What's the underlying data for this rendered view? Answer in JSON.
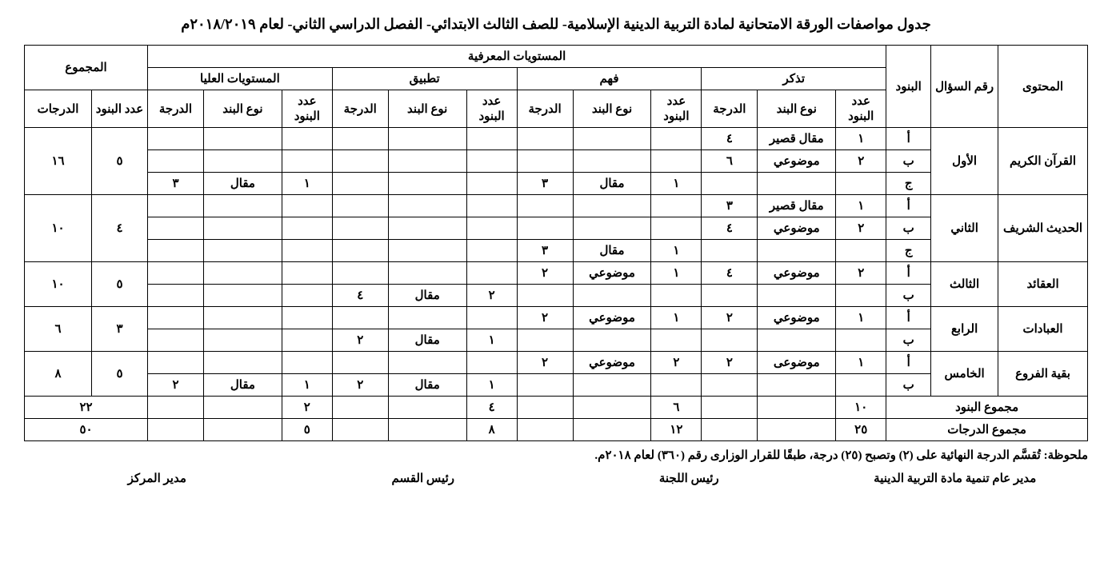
{
  "title": "جدول مواصفات الورقة الامتحانية لمادة التربية الدينية الإسلامية- للصف الثالث الابتدائي- الفصل الدراسي الثاني- لعام ٢٠١٨/٢٠١٩م",
  "headers": {
    "content": "المحتوى",
    "question_no": "رقم السؤال",
    "items": "البنود",
    "cognitive_levels": "المستويات المعرفية",
    "remember": "تذكر",
    "understand": "فهم",
    "apply": "تطبيق",
    "higher": "المستويات العليا",
    "total": "المجموع",
    "num_items": "عدد البنود",
    "item_type": "نوع البند",
    "degree": "الدرجة",
    "degrees": "الدرجات"
  },
  "rows": [
    {
      "content": "القرآن الكريم",
      "q": "الأول",
      "sub": [
        {
          "band": "أ",
          "r_n": "١",
          "r_t": "مقال قصير",
          "r_d": "٤",
          "u_n": "",
          "u_t": "",
          "u_d": "",
          "a_n": "",
          "a_t": "",
          "a_d": "",
          "h_n": "",
          "h_t": "",
          "h_d": ""
        },
        {
          "band": "ب",
          "r_n": "٢",
          "r_t": "موضوعي",
          "r_d": "٦",
          "u_n": "",
          "u_t": "",
          "u_d": "",
          "a_n": "",
          "a_t": "",
          "a_d": "",
          "h_n": "",
          "h_t": "",
          "h_d": ""
        },
        {
          "band": "ج",
          "r_n": "",
          "r_t": "",
          "r_d": "",
          "u_n": "١",
          "u_t": "مقال",
          "u_d": "٣",
          "a_n": "",
          "a_t": "",
          "a_d": "",
          "h_n": "١",
          "h_t": "مقال",
          "h_d": "٣"
        }
      ],
      "tot_n": "٥",
      "tot_d": "١٦"
    },
    {
      "content": "الحديث الشريف",
      "q": "الثاني",
      "sub": [
        {
          "band": "أ",
          "r_n": "١",
          "r_t": "مقال قصير",
          "r_d": "٣",
          "u_n": "",
          "u_t": "",
          "u_d": "",
          "a_n": "",
          "a_t": "",
          "a_d": "",
          "h_n": "",
          "h_t": "",
          "h_d": ""
        },
        {
          "band": "ب",
          "r_n": "٢",
          "r_t": "موضوعي",
          "r_d": "٤",
          "u_n": "",
          "u_t": "",
          "u_d": "",
          "a_n": "",
          "a_t": "",
          "a_d": "",
          "h_n": "",
          "h_t": "",
          "h_d": ""
        },
        {
          "band": "ج",
          "r_n": "",
          "r_t": "",
          "r_d": "",
          "u_n": "١",
          "u_t": "مقال",
          "u_d": "٣",
          "a_n": "",
          "a_t": "",
          "a_d": "",
          "h_n": "",
          "h_t": "",
          "h_d": ""
        }
      ],
      "tot_n": "٤",
      "tot_d": "١٠"
    },
    {
      "content": "العقائد",
      "q": "الثالث",
      "sub": [
        {
          "band": "أ",
          "r_n": "٢",
          "r_t": "موضوعي",
          "r_d": "٤",
          "u_n": "١",
          "u_t": "موضوعي",
          "u_d": "٢",
          "a_n": "",
          "a_t": "",
          "a_d": "",
          "h_n": "",
          "h_t": "",
          "h_d": ""
        },
        {
          "band": "ب",
          "r_n": "",
          "r_t": "",
          "r_d": "",
          "u_n": "",
          "u_t": "",
          "u_d": "",
          "a_n": "٢",
          "a_t": "مقال",
          "a_d": "٤",
          "h_n": "",
          "h_t": "",
          "h_d": ""
        }
      ],
      "tot_n": "٥",
      "tot_d": "١٠"
    },
    {
      "content": "العبادات",
      "q": "الرابع",
      "sub": [
        {
          "band": "أ",
          "r_n": "١",
          "r_t": "موضوعي",
          "r_d": "٢",
          "u_n": "١",
          "u_t": "موضوعي",
          "u_d": "٢",
          "a_n": "",
          "a_t": "",
          "a_d": "",
          "h_n": "",
          "h_t": "",
          "h_d": ""
        },
        {
          "band": "ب",
          "r_n": "",
          "r_t": "",
          "r_d": "",
          "u_n": "",
          "u_t": "",
          "u_d": "",
          "a_n": "١",
          "a_t": "مقال",
          "a_d": "٢",
          "h_n": "",
          "h_t": "",
          "h_d": ""
        }
      ],
      "tot_n": "٣",
      "tot_d": "٦"
    },
    {
      "content": "بقية الفروع",
      "q": "الخامس",
      "sub": [
        {
          "band": "أ",
          "r_n": "١",
          "r_t": "موضوعى",
          "r_d": "٢",
          "u_n": "٢",
          "u_t": "موضوعي",
          "u_d": "٢",
          "a_n": "",
          "a_t": "",
          "a_d": "",
          "h_n": "",
          "h_t": "",
          "h_d": ""
        },
        {
          "band": "ب",
          "r_n": "",
          "r_t": "",
          "r_d": "",
          "u_n": "",
          "u_t": "",
          "u_d": "",
          "a_n": "١",
          "a_t": "مقال",
          "a_d": "٢",
          "h_n": "١",
          "h_t": "مقال",
          "h_d": "٢"
        }
      ],
      "tot_n": "٥",
      "tot_d": "٨"
    }
  ],
  "totals": {
    "items_row_label": "مجموع البنود",
    "degrees_row_label": "مجموع الدرجات",
    "r_items": "١٠",
    "u_items": "٦",
    "a_items": "٤",
    "h_items": "٢",
    "grand_items": "٢٢",
    "r_deg": "٢٥",
    "u_deg": "١٢",
    "a_deg": "٨",
    "h_deg": "٥",
    "grand_deg": "٥٠"
  },
  "note": "ملحوظة: تُقسَّم الدرجة النهائية على (٢) وتصبح (٢٥) درجة، طبقًا للقرار الوزارى رقم (٣٦٠) لعام ٢٠١٨م.",
  "signatures": {
    "s1": "مدير عام تنمية مادة التربية الدينية",
    "s2": "رئيس اللجنة",
    "s3": "رئيس القسم",
    "s4": "مدير المركز"
  }
}
